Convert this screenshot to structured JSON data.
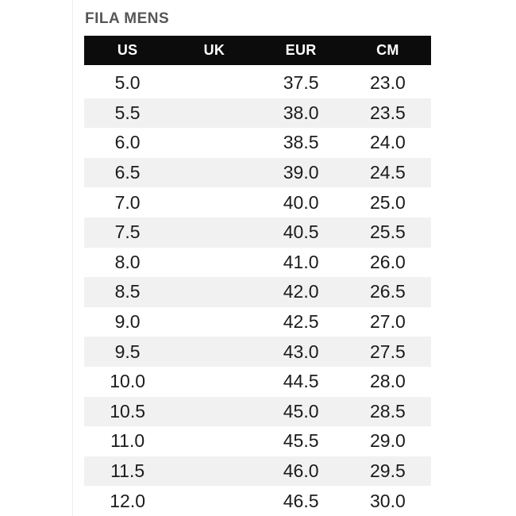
{
  "page": {
    "title": "FILA MENS",
    "colors": {
      "header_bg": "#0c0c0c",
      "header_text": "#ffffff",
      "row_alt_bg": "#f1f1f1",
      "row_bg": "#ffffff",
      "title_color": "#565656",
      "cell_text": "#1b1b1b"
    }
  },
  "chart_data": {
    "type": "table",
    "title": "FILA MENS",
    "columns": [
      "US",
      "UK",
      "EUR",
      "CM"
    ],
    "rows": [
      [
        "5.0",
        "",
        "37.5",
        "23.0"
      ],
      [
        "5.5",
        "",
        "38.0",
        "23.5"
      ],
      [
        "6.0",
        "",
        "38.5",
        "24.0"
      ],
      [
        "6.5",
        "",
        "39.0",
        "24.5"
      ],
      [
        "7.0",
        "",
        "40.0",
        "25.0"
      ],
      [
        "7.5",
        "",
        "40.5",
        "25.5"
      ],
      [
        "8.0",
        "",
        "41.0",
        "26.0"
      ],
      [
        "8.5",
        "",
        "42.0",
        "26.5"
      ],
      [
        "9.0",
        "",
        "42.5",
        "27.0"
      ],
      [
        "9.5",
        "",
        "43.0",
        "27.5"
      ],
      [
        "10.0",
        "",
        "44.5",
        "28.0"
      ],
      [
        "10.5",
        "",
        "45.0",
        "28.5"
      ],
      [
        "11.0",
        "",
        "45.5",
        "29.0"
      ],
      [
        "11.5",
        "",
        "46.0",
        "29.5"
      ],
      [
        "12.0",
        "",
        "46.5",
        "30.0"
      ]
    ]
  }
}
